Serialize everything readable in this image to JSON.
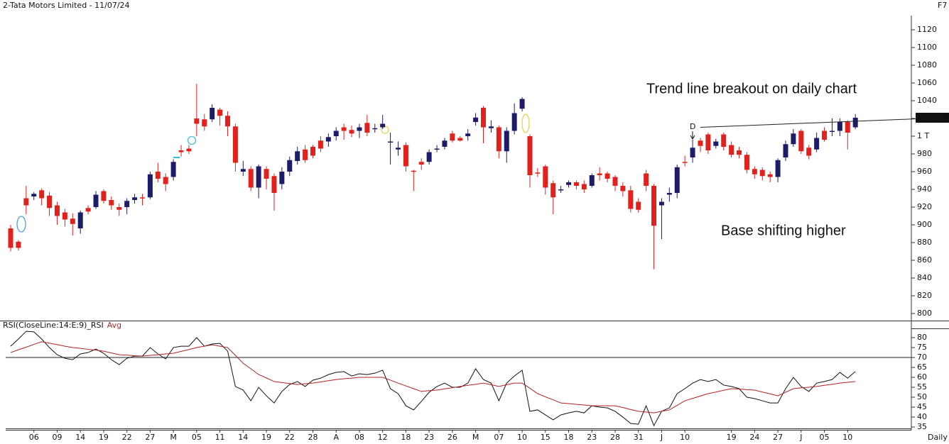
{
  "window": {
    "title": "2-Tata Motors Limited - 11/07/24",
    "key": "F7",
    "period": "Daily"
  },
  "chart_data": [
    {
      "type": "candlestick",
      "categories": [
        null,
        null,
        null,
        "06",
        null,
        null,
        "09",
        null,
        null,
        "14",
        null,
        null,
        "19",
        null,
        null,
        "22",
        null,
        null,
        "27",
        null,
        null,
        "M",
        null,
        null,
        "05",
        null,
        null,
        "11",
        null,
        null,
        "14",
        null,
        null,
        "19",
        null,
        null,
        "22",
        null,
        null,
        "28",
        null,
        null,
        "A",
        null,
        null,
        "08",
        null,
        null,
        "12",
        null,
        null,
        "18",
        null,
        null,
        "23",
        null,
        null,
        "26",
        null,
        null,
        "M",
        null,
        null,
        "07",
        null,
        null,
        "10",
        null,
        null,
        "15",
        null,
        null,
        "18",
        null,
        null,
        "23",
        null,
        null,
        "28",
        null,
        null,
        "31",
        null,
        null,
        "J",
        null,
        null,
        "10",
        null,
        null,
        null,
        null,
        null,
        "19",
        null,
        null,
        "24",
        null,
        null,
        "27",
        null,
        null,
        "J",
        null,
        null,
        "05",
        null,
        null,
        "10",
        null
      ],
      "open": [
        896,
        881,
        930,
        932,
        939,
        933,
        922,
        914,
        907,
        896,
        919,
        920,
        938,
        928,
        920,
        920,
        928,
        931,
        931,
        960,
        954,
        954,
        984,
        986,
        1020,
        1019,
        1019,
        1030,
        1023,
        1011,
        960,
        963,
        942,
        963,
        955,
        946,
        960,
        972,
        985,
        988,
        995,
        994,
        1000,
        1010,
        1007,
        1006,
        1015,
        1008,
        1010,
        993,
        985,
        990,
        961,
        971,
        971,
        985,
        988,
        1003,
        998,
        1000,
        1016,
        1032,
        1009,
        1010,
        983,
        1006,
        1031,
        1000,
        959,
        966,
        947,
        939,
        945,
        948,
        946,
        944,
        958,
        958,
        954,
        944,
        939,
        926,
        958,
        944,
        922,
        934,
        936,
        971,
        976,
        995,
        1002,
        989,
        1002,
        990,
        984,
        979,
        963,
        962,
        957,
        954,
        976,
        991,
        1006,
        987,
        985,
        1006,
        1005,
        1006,
        1016,
        1010
      ],
      "high": [
        900,
        883,
        944,
        937,
        941,
        937,
        926,
        918,
        913,
        916,
        922,
        938,
        940,
        932,
        924,
        930,
        935,
        935,
        960,
        970,
        958,
        974,
        990,
        990,
        1059,
        1025,
        1036,
        1032,
        1028,
        1014,
        972,
        966,
        968,
        966,
        958,
        965,
        977,
        988,
        990,
        990,
        1000,
        1003,
        1010,
        1014,
        1012,
        1014,
        1024,
        1014,
        1024,
        1004,
        994,
        993,
        962,
        975,
        985,
        990,
        998,
        1006,
        1000,
        1008,
        1026,
        1034,
        1018,
        1012,
        1010,
        1037,
        1044,
        1002,
        964,
        968,
        950,
        944,
        950,
        950,
        950,
        958,
        965,
        960,
        956,
        948,
        944,
        930,
        962,
        946,
        930,
        942,
        968,
        978,
        996,
        998,
        1004,
        997,
        1004,
        994,
        988,
        982,
        966,
        965,
        960,
        975,
        995,
        1008,
        1008,
        990,
        1004,
        1010,
        1020,
        1020,
        1018,
        1025
      ],
      "low": [
        870,
        871,
        912,
        928,
        922,
        910,
        900,
        898,
        888,
        890,
        912,
        918,
        924,
        917,
        910,
        912,
        924,
        922,
        929,
        948,
        938,
        950,
        977,
        980,
        1000,
        1006,
        1016,
        1012,
        1000,
        960,
        955,
        938,
        930,
        940,
        916,
        940,
        955,
        968,
        970,
        975,
        982,
        988,
        995,
        996,
        999,
        998,
        1000,
        1004,
        1008,
        968,
        978,
        960,
        938,
        962,
        968,
        982,
        985,
        993,
        994,
        995,
        1012,
        992,
        1004,
        975,
        970,
        1002,
        1028,
        942,
        954,
        934,
        912,
        936,
        942,
        940,
        936,
        942,
        950,
        948,
        938,
        932,
        914,
        914,
        938,
        850,
        884,
        926,
        930,
        966,
        970,
        982,
        980,
        986,
        984,
        976,
        975,
        958,
        952,
        950,
        948,
        948,
        972,
        988,
        980,
        974,
        982,
        994,
        1000,
        1000,
        985,
        1008
      ],
      "close": [
        874,
        874,
        922,
        935,
        930,
        919,
        910,
        906,
        901,
        914,
        915,
        934,
        927,
        922,
        917,
        927,
        931,
        930,
        957,
        952,
        946,
        971,
        982,
        983,
        1014,
        1011,
        1032,
        1023,
        1011,
        970,
        963,
        942,
        966,
        952,
        936,
        960,
        973,
        983,
        973,
        978,
        986,
        999,
        1006,
        1006,
        1003,
        1010,
        1004,
        1009,
        1014,
        994,
        987,
        966,
        960,
        968,
        982,
        986,
        995,
        995,
        995,
        1003,
        1021,
        1010,
        1011,
        983,
        1006,
        1026,
        1042,
        956,
        958,
        942,
        931,
        940,
        948,
        944,
        940,
        956,
        956,
        952,
        944,
        938,
        918,
        917,
        944,
        899,
        926,
        936,
        965,
        970,
        987,
        989,
        984,
        994,
        988,
        979,
        979,
        962,
        957,
        955,
        954,
        973,
        991,
        1003,
        983,
        978,
        998,
        996,
        1006,
        1016,
        1004,
        1020.8
      ],
      "up_color": "#1c1c6b",
      "down_color": "#e3211c",
      "ylim": [
        792,
        1136
      ],
      "yticks": [
        800,
        820,
        840,
        860,
        880,
        900,
        920,
        940,
        960,
        980,
        {
          "value": 1000,
          "label": "1 T"
        },
        1020,
        1040,
        1060,
        1080,
        1100,
        1120
      ],
      "last_price": {
        "value": 1020.8,
        "label": "1020.80"
      },
      "trend_line": {
        "x": [
          89,
          121
        ],
        "values": [
          1010,
          1021
        ]
      },
      "annotations": [
        "Trend line breakout on daily chart",
        "Base shifting higher",
        "D"
      ]
    },
    {
      "type": "line",
      "series": [
        {
          "name": "RSI(CloseLine:14:E:9)_RSI",
          "color": "#111111",
          "values": [
            75.7,
            79.3,
            83.2,
            82.9,
            79.3,
            75.0,
            71.4,
            69.6,
            68.9,
            71.8,
            72.5,
            74.3,
            72.1,
            68.9,
            66.4,
            69.6,
            70.7,
            70.7,
            75.0,
            71.8,
            69.3,
            75.0,
            75.7,
            75.7,
            80.0,
            75.7,
            76.8,
            77.1,
            73.2,
            55.4,
            53.6,
            48.2,
            55.0,
            50.7,
            47.1,
            52.9,
            56.4,
            57.9,
            55.4,
            58.6,
            59.6,
            61.4,
            62.5,
            62.9,
            60.7,
            61.8,
            61.4,
            62.1,
            63.6,
            54.3,
            51.8,
            45.7,
            43.6,
            47.9,
            52.5,
            55.4,
            57.1,
            55.0,
            55.0,
            57.1,
            64.3,
            58.9,
            57.1,
            48.2,
            57.1,
            60.7,
            63.6,
            42.9,
            43.6,
            41.1,
            38.6,
            41.1,
            42.1,
            42.9,
            42.1,
            45.7,
            45.0,
            44.6,
            42.9,
            40.0,
            36.8,
            36.4,
            45.7,
            35.7,
            42.9,
            44.6,
            51.8,
            54.3,
            57.1,
            58.9,
            57.9,
            58.9,
            56.1,
            55.4,
            54.3,
            50.0,
            49.3,
            48.2,
            47.1,
            47.1,
            54.3,
            60.0,
            55.4,
            52.9,
            57.1,
            57.9,
            58.9,
            62.5,
            59.6,
            62.9
          ]
        },
        {
          "name": "Avg",
          "color": "#b22222",
          "values": [
            72.5,
            73.9,
            75.2,
            76.6,
            77.9,
            77.2,
            76.5,
            75.7,
            75.0,
            74.6,
            74.1,
            73.7,
            73.2,
            72.3,
            71.4,
            71.2,
            70.9,
            70.7,
            71.1,
            71.4,
            71.8,
            72.1,
            73.1,
            74.0,
            75.0,
            75.7,
            76.4,
            75.7,
            75.0,
            71.1,
            67.1,
            64.3,
            61.4,
            59.7,
            57.9,
            57.4,
            56.9,
            56.4,
            56.8,
            57.1,
            57.7,
            58.3,
            58.9,
            59.3,
            59.6,
            60.0,
            60.0,
            60.0,
            60.0,
            58.6,
            57.1,
            55.7,
            54.3,
            52.9,
            53.3,
            53.6,
            54.2,
            54.8,
            55.4,
            56.0,
            56.5,
            57.1,
            56.3,
            55.4,
            56.3,
            57.1,
            57.1,
            54.5,
            51.8,
            50.2,
            48.7,
            47.1,
            46.8,
            46.4,
            46.1,
            45.7,
            45.7,
            45.7,
            45.7,
            44.8,
            43.8,
            42.9,
            42.5,
            42.1,
            42.9,
            43.6,
            45.9,
            48.2,
            49.4,
            50.6,
            51.8,
            52.6,
            53.5,
            54.3,
            54.1,
            53.8,
            53.6,
            52.6,
            51.7,
            50.7,
            52.5,
            54.3,
            54.7,
            55.0,
            55.4,
            56.0,
            56.5,
            57.1,
            57.5,
            57.9
          ]
        }
      ],
      "ylim": [
        34.3,
        84.3
      ],
      "yticks": [
        35,
        40,
        45,
        50,
        55,
        60,
        65,
        70,
        75,
        80
      ],
      "hline": 70
    }
  ]
}
